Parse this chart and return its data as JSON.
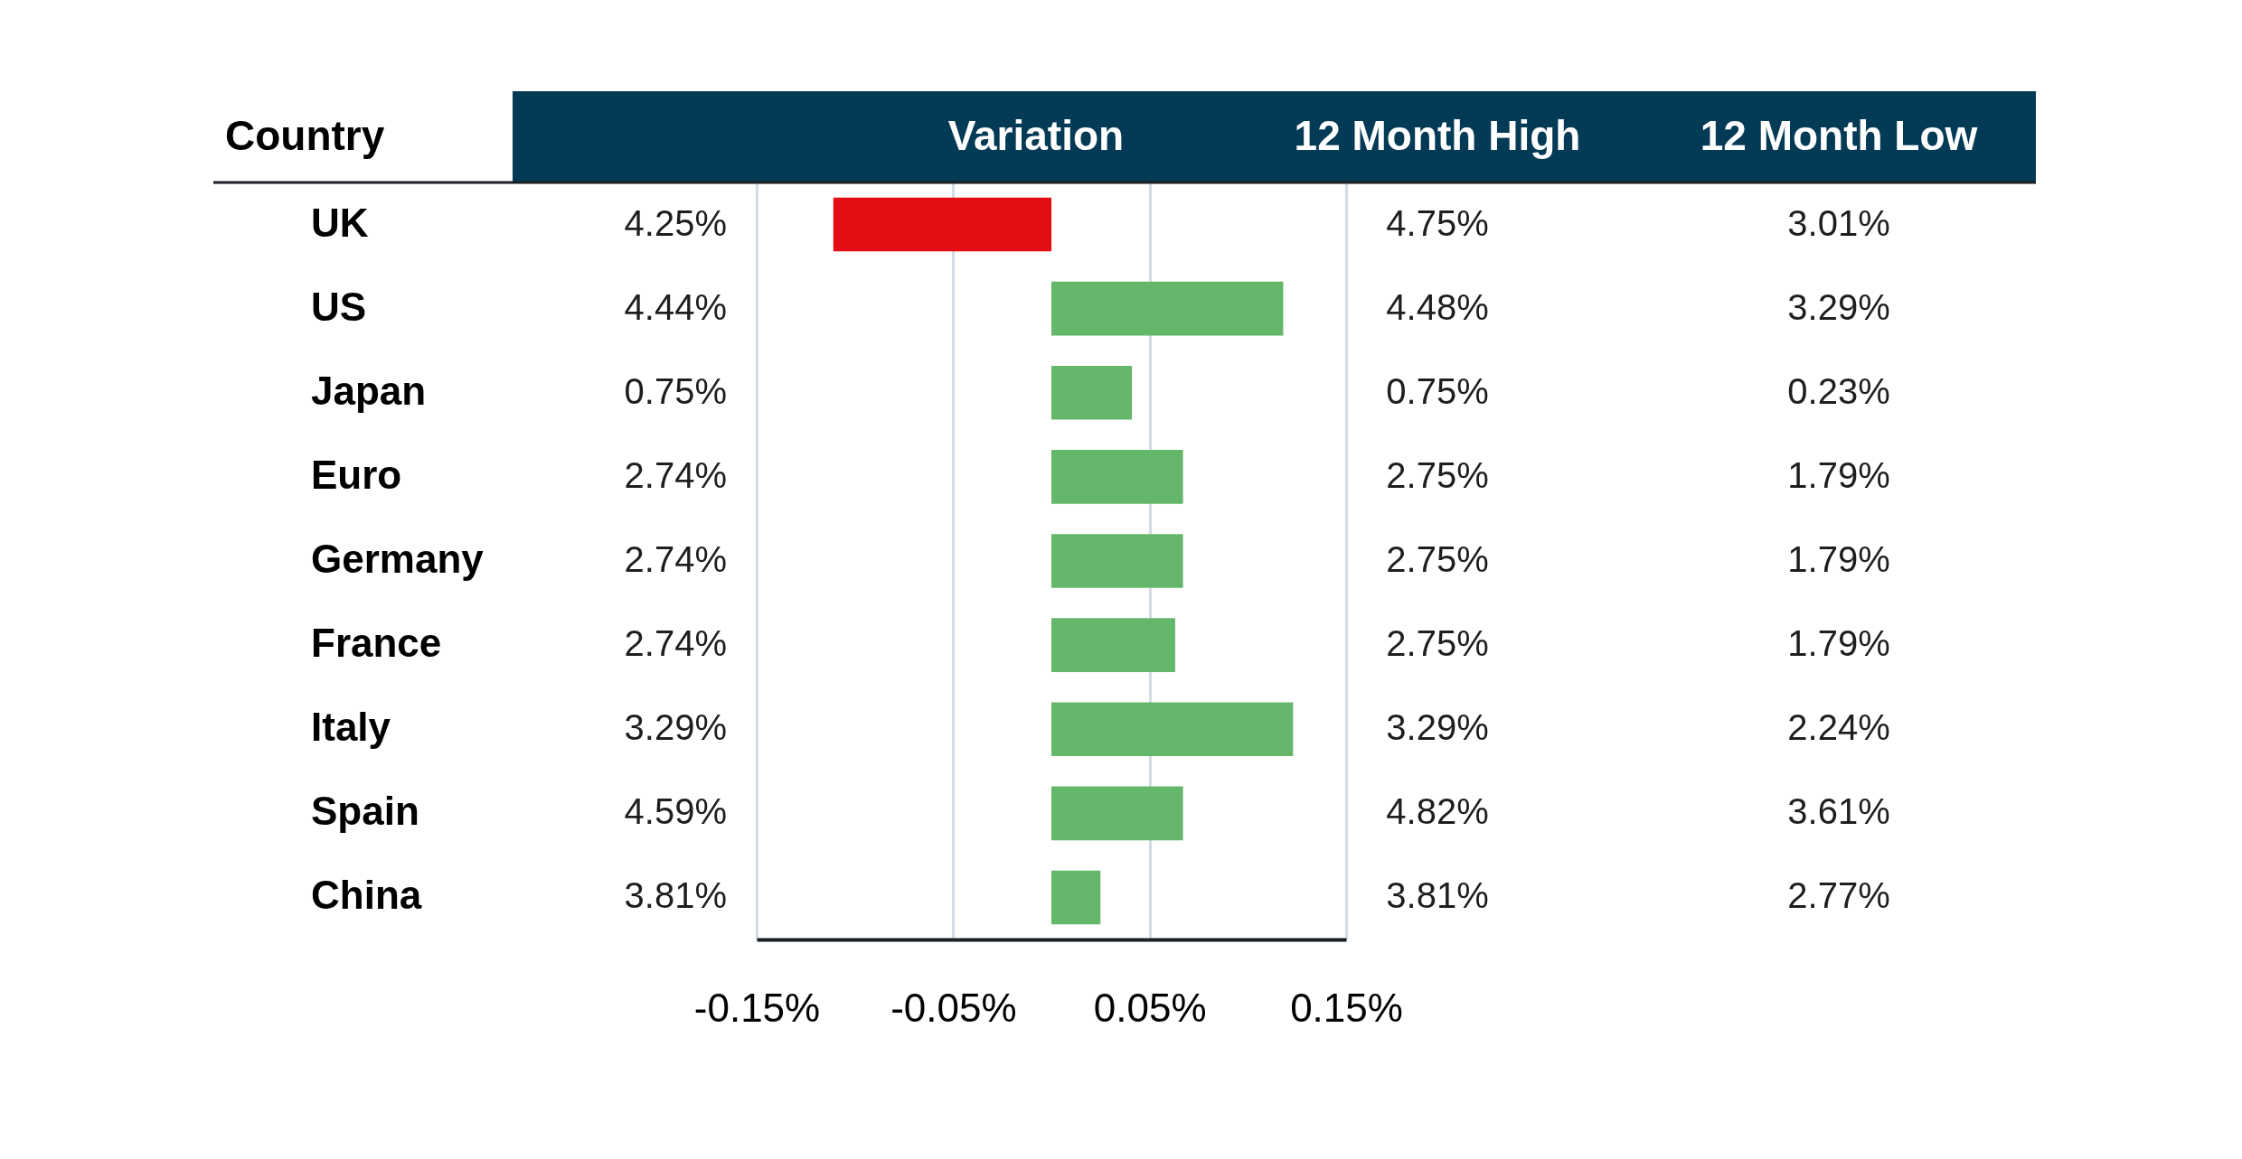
{
  "chart_data": [
    {
      "type": "other",
      "annotations": [
        "Country",
        "UK",
        "4.25%",
        "US",
        "4.44%",
        "Japan",
        "0.75%",
        "Euro",
        "2.74%",
        "Germany",
        "2.74%",
        "France",
        "2.74%",
        "Italy",
        "3.29%",
        "Spain",
        "4.59%",
        "China",
        "3.81%"
      ]
    },
    {
      "type": "bar",
      "title": "Variation",
      "orientation": "horizontal",
      "categories": [
        null,
        null,
        null,
        null,
        null,
        null,
        null,
        null,
        null
      ],
      "values": [
        -0.111,
        0.118,
        0.041,
        0.067,
        0.067,
        0.063,
        0.123,
        0.067,
        0.025
      ],
      "colors": [
        "#e30e14",
        "#64b76a",
        "#64b76a",
        "#64b76a",
        "#64b76a",
        "#64b76a",
        "#64b76a",
        "#64b76a",
        "#64b76a"
      ],
      "xlim": [
        -0.15,
        0.15
      ],
      "xticks": [
        {
          "value": -0.15,
          "label": "-0.15%"
        },
        {
          "value": -0.05,
          "label": "-0.05%"
        },
        {
          "value": 0.05,
          "label": "0.05%"
        },
        {
          "value": 0.15,
          "label": "0.15%"
        }
      ],
      "grid": "x"
    },
    {
      "type": "other",
      "annotations": [
        "12 Month High",
        "12 Month Low",
        "4.75%",
        "3.01%",
        "4.48%",
        "3.29%",
        "0.75%",
        "0.23%",
        "2.75%",
        "1.79%",
        "2.75%",
        "1.79%",
        "2.75%",
        "1.79%",
        "3.29%",
        "2.24%",
        "4.82%",
        "3.61%",
        "3.81%",
        "2.77%"
      ]
    }
  ]
}
